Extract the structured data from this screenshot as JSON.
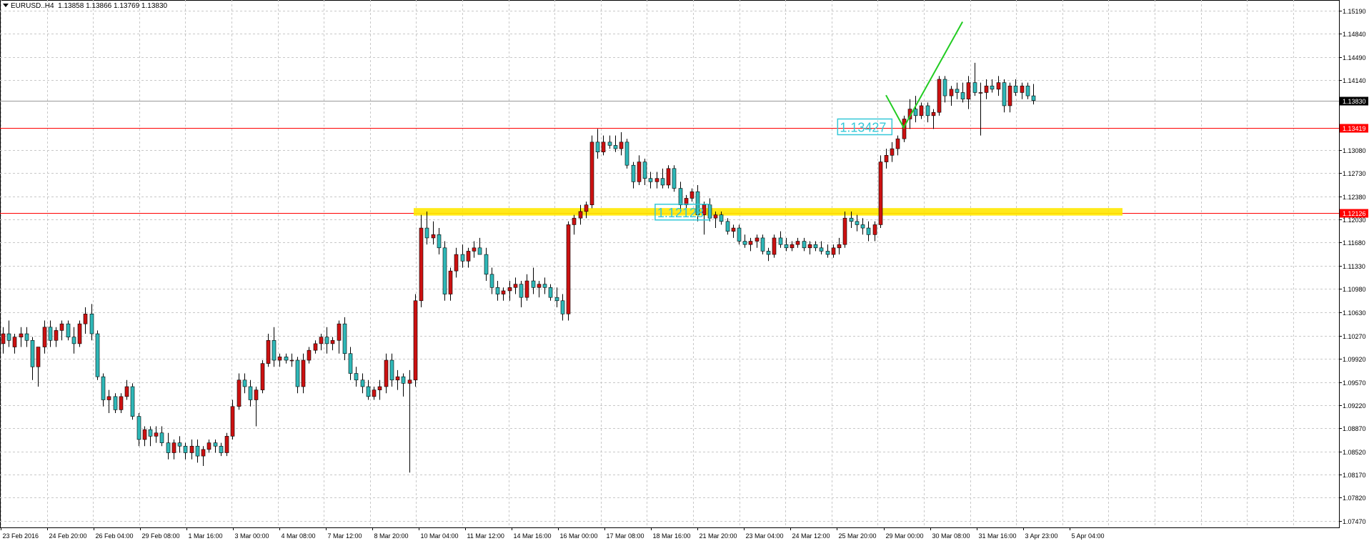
{
  "header": {
    "symbol": "EURUSD..H4",
    "ohlc": "1.13858 1.13866 1.13769 1.13830"
  },
  "colors": {
    "bull": "#cc1111",
    "bear": "#2fb8b8",
    "grid": "#c8c8c8",
    "hline": "#ff0000",
    "zone": "#ffe800",
    "projection": "#22cc22",
    "callout": "#35c8d8"
  },
  "chart_data": {
    "type": "candlestick",
    "x_labels": [
      "23 Feb 2016",
      "24 Feb 20:00",
      "26 Feb 04:00",
      "29 Feb 08:00",
      "1 Mar 16:00",
      "3 Mar 00:00",
      "4 Mar 08:00",
      "7 Mar 12:00",
      "8 Mar 20:00",
      "10 Mar 04:00",
      "11 Mar 12:00",
      "14 Mar 16:00",
      "16 Mar 00:00",
      "17 Mar 08:00",
      "18 Mar 16:00",
      "21 Mar 20:00",
      "23 Mar 04:00",
      "24 Mar 12:00",
      "25 Mar 20:00",
      "29 Mar 00:00",
      "30 Mar 08:00",
      "31 Mar 16:00",
      "3 Apr 23:00",
      "5 Apr 04:00"
    ],
    "y_ticks": [
      "1.15190",
      "1.14840",
      "1.14490",
      "1.14140",
      "1.13830",
      "1.13419",
      "1.13080",
      "1.12730",
      "1.12380",
      "1.12126",
      "1.12030",
      "1.11680",
      "1.11330",
      "1.10980",
      "1.10630",
      "1.10270",
      "1.09920",
      "1.09570",
      "1.09220",
      "1.08870",
      "1.08520",
      "1.08170",
      "1.07820",
      "1.07470"
    ],
    "ylim": [
      1.0737,
      1.1535
    ],
    "current_price": 1.1383,
    "horizontal_lines": [
      1.13419,
      1.12126
    ],
    "support_zone": [
      1.1211,
      1.1218
    ],
    "callouts": [
      {
        "text": "1.13427",
        "index": 143,
        "price": 1.1342
      },
      {
        "text": "1.12128",
        "index": 112,
        "price": 1.1213
      }
    ],
    "projection": {
      "points": [
        [
          150,
          1.1391
        ],
        [
          153,
          1.1342
        ],
        [
          163,
          1.1502
        ]
      ]
    },
    "ohlc": [
      [
        1.1015,
        1.104,
        1.1,
        1.103
      ],
      [
        1.103,
        1.105,
        1.101,
        1.102
      ],
      [
        1.101,
        1.103,
        1.1,
        1.1025
      ],
      [
        1.1025,
        1.104,
        1.101,
        1.103
      ],
      [
        1.103,
        1.104,
        1.101,
        1.102
      ],
      [
        1.102,
        1.1025,
        1.096,
        1.098
      ],
      [
        1.098,
        1.101,
        1.095,
        1.101
      ],
      [
        1.101,
        1.105,
        1.1,
        1.104
      ],
      [
        1.104,
        1.105,
        1.101,
        1.102
      ],
      [
        1.102,
        1.104,
        1.101,
        1.1035
      ],
      [
        1.1035,
        1.105,
        1.102,
        1.1045
      ],
      [
        1.1045,
        1.105,
        1.102,
        1.1025
      ],
      [
        1.1025,
        1.104,
        1.1,
        1.1015
      ],
      [
        1.1015,
        1.105,
        1.101,
        1.1045
      ],
      [
        1.1045,
        1.107,
        1.103,
        1.106
      ],
      [
        1.106,
        1.1075,
        1.102,
        1.103
      ],
      [
        1.103,
        1.1035,
        1.096,
        1.0965
      ],
      [
        1.0965,
        1.097,
        1.092,
        1.093
      ],
      [
        1.093,
        1.0945,
        1.091,
        1.0935
      ],
      [
        1.0935,
        1.094,
        1.091,
        1.0915
      ],
      [
        1.0915,
        1.094,
        1.091,
        1.0935
      ],
      [
        1.0935,
        1.096,
        1.093,
        1.095
      ],
      [
        1.095,
        1.0955,
        1.09,
        1.0905
      ],
      [
        1.0905,
        1.091,
        1.086,
        1.087
      ],
      [
        1.087,
        1.089,
        1.086,
        1.0885
      ],
      [
        1.0885,
        1.089,
        1.086,
        1.0875
      ],
      [
        1.0875,
        1.089,
        1.0865,
        1.088
      ],
      [
        1.088,
        1.089,
        1.086,
        1.0865
      ],
      [
        1.0865,
        1.088,
        1.084,
        1.085
      ],
      [
        1.085,
        1.087,
        1.084,
        1.0865
      ],
      [
        1.0865,
        1.0875,
        1.085,
        1.086
      ],
      [
        1.086,
        1.0865,
        1.084,
        1.085
      ],
      [
        1.085,
        1.087,
        1.084,
        1.086
      ],
      [
        1.086,
        1.087,
        1.0835,
        1.0845
      ],
      [
        1.0845,
        1.086,
        1.083,
        1.0855
      ],
      [
        1.0855,
        1.087,
        1.085,
        1.0865
      ],
      [
        1.0865,
        1.087,
        1.085,
        1.086
      ],
      [
        1.086,
        1.0865,
        1.0845,
        1.085
      ],
      [
        1.085,
        1.088,
        1.0845,
        1.0875
      ],
      [
        1.0875,
        1.093,
        1.087,
        1.092
      ],
      [
        1.092,
        1.097,
        1.0915,
        1.096
      ],
      [
        1.096,
        1.097,
        1.094,
        1.095
      ],
      [
        1.095,
        1.096,
        1.092,
        1.093
      ],
      [
        1.093,
        1.095,
        1.089,
        1.0945
      ],
      [
        1.0945,
        1.099,
        1.094,
        1.0985
      ],
      [
        1.0985,
        1.103,
        1.098,
        1.102
      ],
      [
        1.102,
        1.104,
        1.098,
        1.099
      ],
      [
        1.099,
        1.1,
        1.098,
        1.0995
      ],
      [
        1.0995,
        1.1,
        1.0985,
        1.099
      ],
      [
        1.099,
        1.1,
        1.098,
        1.099
      ],
      [
        1.099,
        1.0995,
        1.094,
        1.095
      ],
      [
        1.095,
        1.1,
        1.094,
        1.099
      ],
      [
        1.099,
        1.101,
        1.0985,
        1.1005
      ],
      [
        1.1005,
        1.102,
        1.1,
        1.1015
      ],
      [
        1.1015,
        1.103,
        1.1005,
        1.1025
      ],
      [
        1.1025,
        1.104,
        1.1,
        1.1015
      ],
      [
        1.1015,
        1.1025,
        1.1005,
        1.102
      ],
      [
        1.102,
        1.105,
        1.1,
        1.1045
      ],
      [
        1.1045,
        1.1055,
        1.099,
        1.1
      ],
      [
        1.1,
        1.101,
        1.096,
        1.097
      ],
      [
        1.097,
        1.098,
        1.095,
        1.096
      ],
      [
        1.096,
        1.097,
        1.094,
        1.095
      ],
      [
        1.095,
        1.096,
        1.093,
        1.0935
      ],
      [
        1.0935,
        1.095,
        1.093,
        1.0945
      ],
      [
        1.0945,
        1.096,
        1.093,
        1.095
      ],
      [
        1.095,
        1.1,
        1.094,
        1.099
      ],
      [
        1.099,
        1.1,
        1.095,
        1.096
      ],
      [
        1.096,
        1.0975,
        1.0945,
        1.0965
      ],
      [
        1.0965,
        1.097,
        1.0935,
        1.0955
      ],
      [
        1.0955,
        1.0975,
        1.082,
        1.096
      ],
      [
        1.096,
        1.109,
        1.095,
        1.108
      ],
      [
        1.108,
        1.121,
        1.107,
        1.119
      ],
      [
        1.119,
        1.1215,
        1.1165,
        1.1175
      ],
      [
        1.1175,
        1.12,
        1.1165,
        1.118
      ],
      [
        1.118,
        1.119,
        1.115,
        1.116
      ],
      [
        1.116,
        1.117,
        1.108,
        1.109
      ],
      [
        1.109,
        1.113,
        1.108,
        1.1125
      ],
      [
        1.1125,
        1.116,
        1.1115,
        1.115
      ],
      [
        1.115,
        1.1165,
        1.113,
        1.114
      ],
      [
        1.114,
        1.116,
        1.113,
        1.1155
      ],
      [
        1.1155,
        1.117,
        1.1145,
        1.116
      ],
      [
        1.116,
        1.1175,
        1.115,
        1.115
      ],
      [
        1.115,
        1.116,
        1.111,
        1.112
      ],
      [
        1.112,
        1.113,
        1.109,
        1.11
      ],
      [
        1.11,
        1.111,
        1.108,
        1.109
      ],
      [
        1.109,
        1.11,
        1.108,
        1.1095
      ],
      [
        1.1095,
        1.111,
        1.108,
        1.11
      ],
      [
        1.11,
        1.1115,
        1.109,
        1.1105
      ],
      [
        1.1105,
        1.111,
        1.107,
        1.1085
      ],
      [
        1.1085,
        1.112,
        1.108,
        1.111
      ],
      [
        1.111,
        1.113,
        1.109,
        1.11
      ],
      [
        1.11,
        1.111,
        1.1085,
        1.1105
      ],
      [
        1.1105,
        1.1115,
        1.109,
        1.11
      ],
      [
        1.11,
        1.1105,
        1.108,
        1.1085
      ],
      [
        1.1085,
        1.11,
        1.107,
        1.108
      ],
      [
        1.108,
        1.109,
        1.105,
        1.106
      ],
      [
        1.106,
        1.12,
        1.105,
        1.1195
      ],
      [
        1.1195,
        1.121,
        1.118,
        1.1205
      ],
      [
        1.1205,
        1.1225,
        1.1195,
        1.1215
      ],
      [
        1.1215,
        1.123,
        1.1205,
        1.1225
      ],
      [
        1.1225,
        1.133,
        1.122,
        1.132
      ],
      [
        1.132,
        1.134,
        1.1295,
        1.1305
      ],
      [
        1.1305,
        1.133,
        1.13,
        1.132
      ],
      [
        1.132,
        1.133,
        1.131,
        1.1315
      ],
      [
        1.1315,
        1.133,
        1.1305,
        1.131
      ],
      [
        1.131,
        1.1335,
        1.13,
        1.132
      ],
      [
        1.132,
        1.1325,
        1.128,
        1.1285
      ],
      [
        1.1285,
        1.129,
        1.125,
        1.126
      ],
      [
        1.126,
        1.13,
        1.1255,
        1.129
      ],
      [
        1.129,
        1.1295,
        1.1255,
        1.1265
      ],
      [
        1.1265,
        1.1275,
        1.125,
        1.126
      ],
      [
        1.126,
        1.1275,
        1.125,
        1.1265
      ],
      [
        1.1265,
        1.128,
        1.125,
        1.1255
      ],
      [
        1.1255,
        1.1285,
        1.125,
        1.128
      ],
      [
        1.128,
        1.1285,
        1.1245,
        1.125
      ],
      [
        1.125,
        1.126,
        1.1215,
        1.1225
      ],
      [
        1.1225,
        1.124,
        1.1215,
        1.1235
      ],
      [
        1.1235,
        1.125,
        1.123,
        1.1245
      ],
      [
        1.1245,
        1.1255,
        1.12,
        1.121
      ],
      [
        1.121,
        1.123,
        1.118,
        1.1225
      ],
      [
        1.1225,
        1.1235,
        1.12,
        1.1205
      ],
      [
        1.1205,
        1.1215,
        1.119,
        1.121
      ],
      [
        1.121,
        1.1215,
        1.1195,
        1.12
      ],
      [
        1.12,
        1.1205,
        1.118,
        1.1185
      ],
      [
        1.1185,
        1.1195,
        1.1175,
        1.119
      ],
      [
        1.119,
        1.1195,
        1.1165,
        1.117
      ],
      [
        1.117,
        1.118,
        1.116,
        1.1165
      ],
      [
        1.1165,
        1.1175,
        1.1155,
        1.117
      ],
      [
        1.117,
        1.118,
        1.116,
        1.1175
      ],
      [
        1.1175,
        1.118,
        1.115,
        1.1155
      ],
      [
        1.1155,
        1.116,
        1.114,
        1.115
      ],
      [
        1.115,
        1.118,
        1.1145,
        1.1175
      ],
      [
        1.1175,
        1.1185,
        1.116,
        1.1165
      ],
      [
        1.1165,
        1.1175,
        1.1155,
        1.116
      ],
      [
        1.116,
        1.117,
        1.1155,
        1.1165
      ],
      [
        1.1165,
        1.1175,
        1.116,
        1.117
      ],
      [
        1.117,
        1.1175,
        1.1155,
        1.116
      ],
      [
        1.116,
        1.117,
        1.115,
        1.1165
      ],
      [
        1.1165,
        1.117,
        1.1155,
        1.116
      ],
      [
        1.116,
        1.117,
        1.115,
        1.1155
      ],
      [
        1.1155,
        1.1165,
        1.1145,
        1.115
      ],
      [
        1.115,
        1.1165,
        1.1145,
        1.116
      ],
      [
        1.116,
        1.1175,
        1.115,
        1.1165
      ],
      [
        1.1165,
        1.1215,
        1.116,
        1.1205
      ],
      [
        1.1205,
        1.1215,
        1.119,
        1.12
      ],
      [
        1.12,
        1.121,
        1.1185,
        1.1195
      ],
      [
        1.1195,
        1.1205,
        1.118,
        1.119
      ],
      [
        1.119,
        1.12,
        1.117,
        1.118
      ],
      [
        1.118,
        1.12,
        1.117,
        1.1195
      ],
      [
        1.1195,
        1.13,
        1.119,
        1.129
      ],
      [
        1.129,
        1.131,
        1.128,
        1.13
      ],
      [
        1.13,
        1.132,
        1.129,
        1.131
      ],
      [
        1.131,
        1.133,
        1.13,
        1.1325
      ],
      [
        1.1325,
        1.136,
        1.132,
        1.1355
      ],
      [
        1.1355,
        1.1385,
        1.134,
        1.137
      ],
      [
        1.137,
        1.139,
        1.135,
        1.136
      ],
      [
        1.136,
        1.138,
        1.1355,
        1.1375
      ],
      [
        1.1375,
        1.138,
        1.135,
        1.136
      ],
      [
        1.136,
        1.137,
        1.134,
        1.1365
      ],
      [
        1.1365,
        1.142,
        1.136,
        1.1415
      ],
      [
        1.1415,
        1.142,
        1.138,
        1.139
      ],
      [
        1.139,
        1.1405,
        1.1375,
        1.14
      ],
      [
        1.14,
        1.141,
        1.1385,
        1.1395
      ],
      [
        1.1395,
        1.141,
        1.138,
        1.1385
      ],
      [
        1.1385,
        1.142,
        1.137,
        1.141
      ],
      [
        1.141,
        1.144,
        1.139,
        1.1395
      ],
      [
        1.1395,
        1.141,
        1.133,
        1.1395
      ],
      [
        1.1395,
        1.1415,
        1.1385,
        1.1405
      ],
      [
        1.1405,
        1.1415,
        1.1395,
        1.14
      ],
      [
        1.14,
        1.142,
        1.139,
        1.141
      ],
      [
        1.141,
        1.1415,
        1.1365,
        1.1375
      ],
      [
        1.1375,
        1.141,
        1.1365,
        1.1405
      ],
      [
        1.1405,
        1.1415,
        1.139,
        1.1395
      ],
      [
        1.1395,
        1.141,
        1.1385,
        1.1405
      ],
      [
        1.1405,
        1.141,
        1.1385,
        1.139
      ],
      [
        1.139,
        1.1408,
        1.1377,
        1.1383
      ]
    ]
  }
}
